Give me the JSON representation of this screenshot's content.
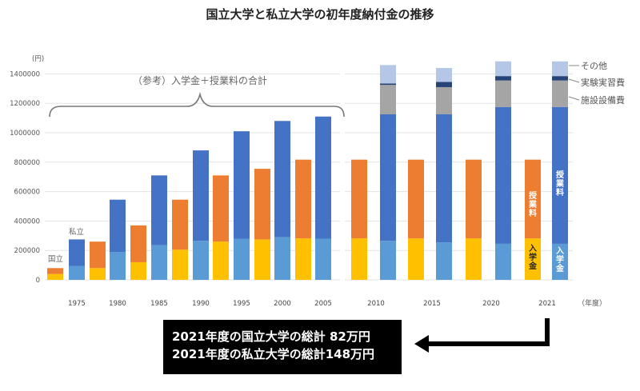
{
  "chart_data": {
    "type": "bar",
    "title": "国立大学と私立大学の初年度納付金の推移",
    "y_unit": "(円)",
    "x_unit": "（年度）",
    "ylim": [
      0,
      1500000
    ],
    "yticks": [
      0,
      200000,
      400000,
      600000,
      800000,
      1000000,
      1200000,
      1400000
    ],
    "grid": true,
    "colors": {
      "national_admission": "#ffc000",
      "national_tuition": "#ed7d31",
      "private_admission": "#5b9bd5",
      "private_tuition": "#4472c4",
      "facility": "#a5a5a5",
      "practical": "#264478",
      "other": "#b4c7e7"
    },
    "series_groups": [
      {
        "x": 1970,
        "national": {
          "admission": 40000,
          "tuition": 40000
        }
      },
      {
        "x": 1975,
        "private": {
          "admission": 95000,
          "tuition": 180000
        }
      },
      {
        "x": 1977,
        "national": {
          "admission": 80000,
          "tuition": 180000
        }
      },
      {
        "x": 1980,
        "private": {
          "admission": 190000,
          "tuition": 355000
        }
      },
      {
        "x": 1982,
        "national": {
          "admission": 120000,
          "tuition": 250000
        }
      },
      {
        "x": 1985,
        "private": {
          "admission": 235000,
          "tuition": 475000
        }
      },
      {
        "x": 1987,
        "national": {
          "admission": 205000,
          "tuition": 340000
        }
      },
      {
        "x": 1990,
        "private": {
          "admission": 265000,
          "tuition": 615000
        }
      },
      {
        "x": 1992,
        "national": {
          "admission": 260000,
          "tuition": 450000
        }
      },
      {
        "x": 1995,
        "private": {
          "admission": 280000,
          "tuition": 730000
        }
      },
      {
        "x": 1997,
        "national": {
          "admission": 275000,
          "tuition": 480000
        }
      },
      {
        "x": 2000,
        "private": {
          "admission": 290000,
          "tuition": 790000
        }
      },
      {
        "x": 2002,
        "national": {
          "admission": 282000,
          "tuition": 535000
        }
      },
      {
        "x": 2005,
        "private": {
          "admission": 280000,
          "tuition": 830000
        }
      },
      {
        "x": 2007,
        "national": {
          "admission": 282000,
          "tuition": 535000
        }
      },
      {
        "x": 2010,
        "private": {
          "admission": 265000,
          "tuition": 860000,
          "facility": 200000,
          "practical": 10000,
          "other": 125000
        }
      },
      {
        "x": 2012,
        "national": {
          "admission": 282000,
          "tuition": 535000
        }
      },
      {
        "x": 2015,
        "private": {
          "admission": 255000,
          "tuition": 870000,
          "facility": 185000,
          "practical": 35000,
          "other": 95000
        }
      },
      {
        "x": 2017,
        "national": {
          "admission": 282000,
          "tuition": 535000
        }
      },
      {
        "x": 2020,
        "private": {
          "admission": 245000,
          "tuition": 930000,
          "facility": 180000,
          "practical": 30000,
          "other": 100000
        }
      },
      {
        "x": 2021.5,
        "national": {
          "admission": 282000,
          "tuition": 535000
        }
      },
      {
        "x": 2023,
        "private": {
          "admission": 245000,
          "tuition": 930000,
          "facility": 180000,
          "practical": 30000,
          "other": 100000
        }
      }
    ],
    "x_tick_labels": [
      "1975",
      "1980",
      "1985",
      "1990",
      "1995",
      "2000",
      "2005",
      "2010",
      "2015",
      "2020",
      "2021"
    ],
    "annotations": {
      "national": "国立",
      "private": "私立",
      "reference": "（参考）入学金＋授業料の合計",
      "other": "その他",
      "practical": "実験実習費",
      "facility": "施設設備費",
      "tuition_label": "授業料",
      "admission_label": "入学金"
    }
  },
  "summary": {
    "line1": "2021年度の国立大学の総計 82万円",
    "line2": "2021年度の私立大学の総計148万円"
  }
}
